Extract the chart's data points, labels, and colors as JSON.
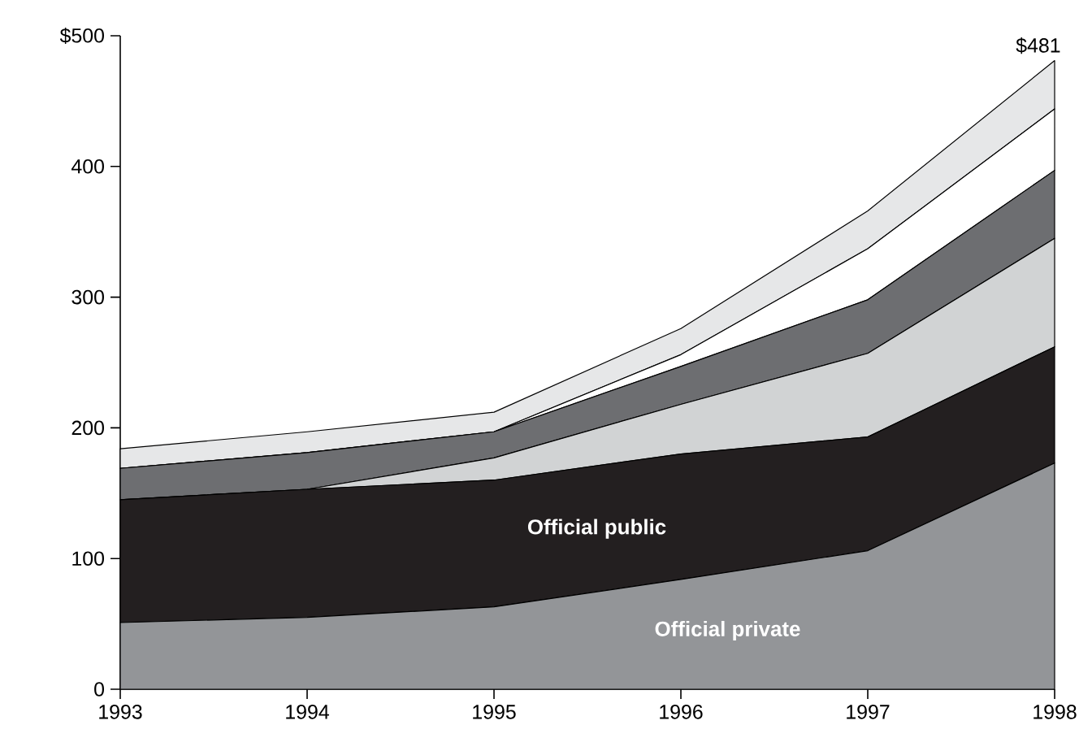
{
  "chart_data": {
    "type": "area",
    "stacked": true,
    "x": [
      1993,
      1994,
      1995,
      1996,
      1997,
      1998
    ],
    "xlim": [
      1993,
      1998
    ],
    "xticks": [
      1993,
      1994,
      1995,
      1996,
      1997,
      1998
    ],
    "ylim": [
      0,
      500
    ],
    "yticks": [
      0,
      100,
      200,
      300,
      400,
      {
        "value": 500,
        "label": "$500"
      }
    ],
    "series": [
      {
        "name": "Official private",
        "color": "#939598",
        "values": [
          51,
          55,
          63,
          84,
          106,
          173
        ]
      },
      {
        "name": "Official public",
        "color": "#231f20",
        "values": [
          94,
          98,
          97,
          96,
          87,
          89
        ]
      },
      {
        "color": "#d1d3d4",
        "values": [
          0,
          0,
          17,
          38,
          64,
          83
        ]
      },
      {
        "color": "#6d6e71",
        "values": [
          24,
          28,
          20,
          29,
          41,
          52
        ]
      },
      {
        "color": "#ffffff",
        "values": [
          0,
          0,
          0,
          9,
          39,
          47
        ]
      },
      {
        "color": "#e6e7e8",
        "values": [
          15,
          16,
          15,
          20,
          29,
          37
        ]
      }
    ],
    "annotations": [
      {
        "text": "$481",
        "x": 1998,
        "y": 481
      }
    ]
  }
}
